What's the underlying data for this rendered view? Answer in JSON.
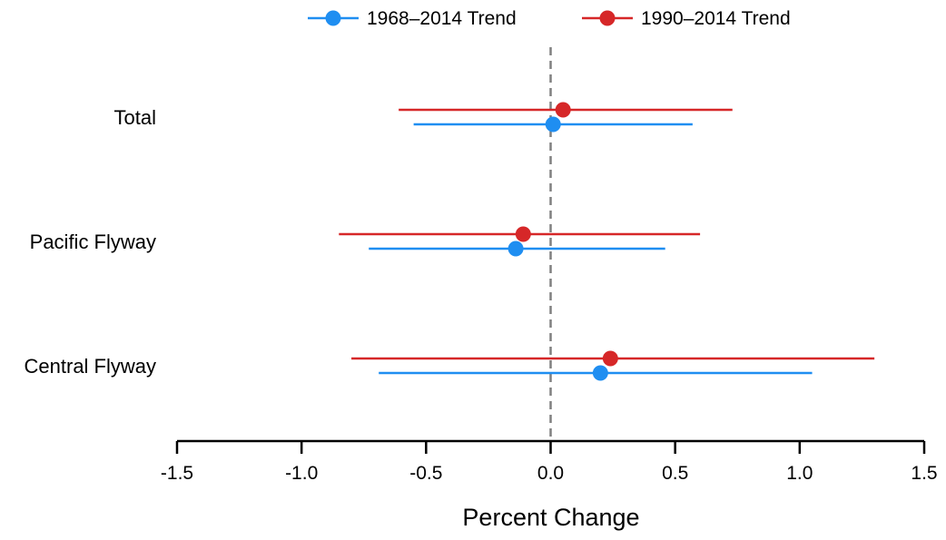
{
  "chart_data": {
    "type": "scatter",
    "subtype": "forest-plot",
    "title": "",
    "xlabel": "Percent Change",
    "ylabel": "",
    "xlim": [
      -1.5,
      1.5
    ],
    "xticks": [
      -1.5,
      -1.0,
      -0.5,
      0.0,
      0.5,
      1.0,
      1.5
    ],
    "xtick_labels": [
      "-1.5",
      "-1.0",
      "-0.5",
      "0.0",
      "0.5",
      "1.0",
      "1.5"
    ],
    "reference_line": {
      "x": 0.0,
      "style": "dashed",
      "color": "#808080"
    },
    "categories": [
      "Total",
      "Pacific Flyway",
      "Central Flyway"
    ],
    "legend_position": "top-center",
    "grid": false,
    "series": [
      {
        "name": "1968–2014 Trend",
        "color": "#1f8ef1",
        "estimates": [
          0.01,
          -0.14,
          0.2
        ],
        "lower": [
          -0.55,
          -0.73,
          -0.69
        ],
        "upper": [
          0.57,
          0.46,
          1.05
        ]
      },
      {
        "name": "1990–2014 Trend",
        "color": "#d62728",
        "estimates": [
          0.05,
          -0.11,
          0.24
        ],
        "lower": [
          -0.61,
          -0.85,
          -0.8
        ],
        "upper": [
          0.73,
          0.6,
          1.3
        ]
      }
    ]
  }
}
